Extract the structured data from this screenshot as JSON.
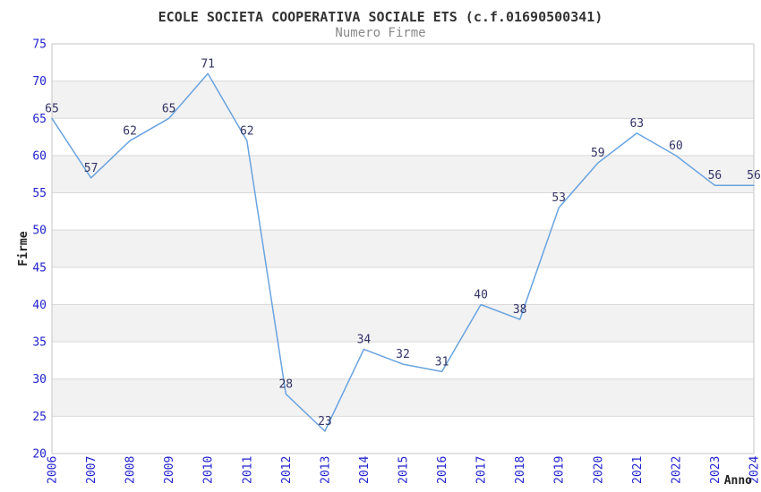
{
  "chart_data": {
    "type": "line",
    "title": "ECOLE SOCIETA COOPERATIVA SOCIALE ETS (c.f.01690500341)",
    "subtitle": "Numero Firme",
    "xlabel": "Anno",
    "ylabel": "Firme",
    "categories": [
      "2006",
      "2007",
      "2008",
      "2009",
      "2010",
      "2011",
      "2012",
      "2013",
      "2014",
      "2015",
      "2016",
      "2017",
      "2018",
      "2019",
      "2020",
      "2021",
      "2022",
      "2023",
      "2024"
    ],
    "series": [
      {
        "name": "Numero Firme",
        "values": [
          65,
          57,
          62,
          65,
          71,
          62,
          28,
          23,
          34,
          32,
          31,
          40,
          38,
          53,
          59,
          63,
          60,
          56,
          56
        ]
      }
    ],
    "ylim": [
      20,
      75
    ],
    "yticks": [
      20,
      25,
      30,
      35,
      40,
      45,
      50,
      55,
      60,
      65,
      70,
      75
    ],
    "grid": "horizontal-lines-with-alternating-bands",
    "legend_position": "none",
    "data_labels_visible": true,
    "x_tick_rotation_degrees": 90,
    "colors": {
      "line": "#69a3df",
      "tick_label": "#2222cc",
      "data_label": "#333366",
      "band_fill": "#f2f2f2",
      "grid_line": "#d9d9d9",
      "plot_border": "#c6c6c6",
      "title": "#333333",
      "subtitle": "#888888",
      "axis_label": "#222222",
      "plot_background": "#ffffff"
    }
  }
}
